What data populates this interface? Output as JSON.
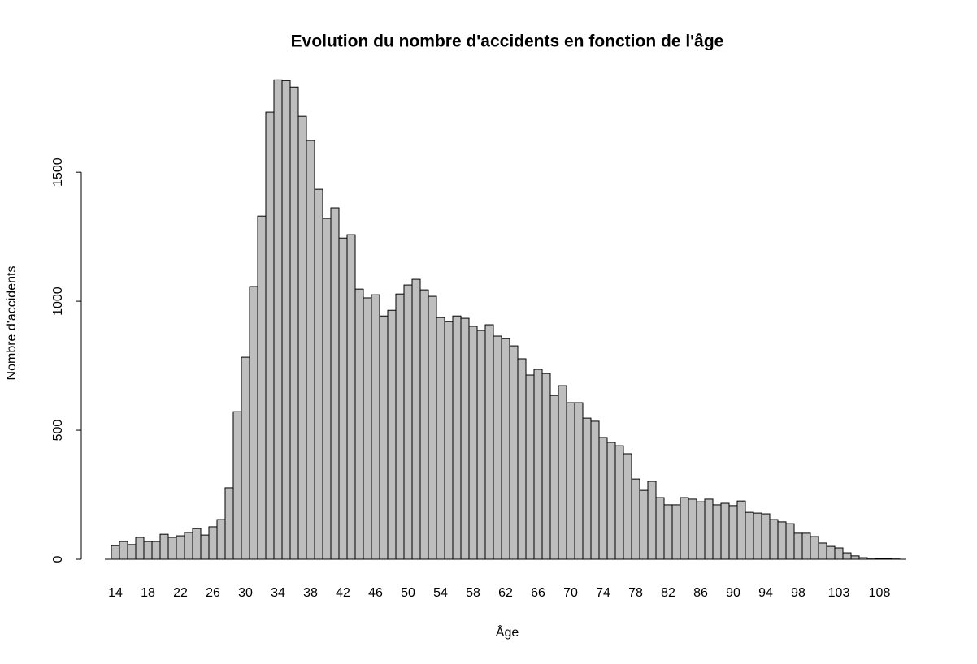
{
  "chart_data": {
    "type": "bar",
    "title": "Evolution du nombre d'accidents en fonction de l'âge",
    "x_label": "Âge",
    "y_label": "Nombre d'accidents",
    "categories": [
      14,
      null,
      null,
      null,
      18,
      null,
      null,
      null,
      22,
      null,
      null,
      null,
      26,
      null,
      null,
      null,
      30,
      null,
      null,
      null,
      34,
      null,
      null,
      null,
      38,
      null,
      null,
      null,
      42,
      null,
      null,
      null,
      46,
      null,
      null,
      null,
      50,
      null,
      null,
      null,
      54,
      null,
      null,
      null,
      58,
      null,
      null,
      null,
      62,
      null,
      null,
      null,
      66,
      null,
      null,
      null,
      70,
      null,
      null,
      null,
      74,
      null,
      null,
      null,
      78,
      null,
      null,
      null,
      82,
      null,
      null,
      null,
      86,
      null,
      null,
      null,
      90,
      null,
      null,
      null,
      94,
      null,
      null,
      null,
      98,
      null,
      null,
      null,
      null,
      103,
      null,
      null,
      null,
      null,
      108,
      null,
      null
    ],
    "values": [
      53,
      69,
      57,
      85,
      69,
      69,
      97,
      85,
      91,
      104,
      119,
      94,
      126,
      154,
      277,
      572,
      783,
      1057,
      1330,
      1733,
      1858,
      1855,
      1830,
      1717,
      1623,
      1434,
      1321,
      1362,
      1245,
      1258,
      1047,
      1013,
      1025,
      943,
      965,
      1028,
      1063,
      1085,
      1044,
      1019,
      937,
      921,
      943,
      934,
      903,
      887,
      909,
      865,
      855,
      827,
      777,
      714,
      736,
      720,
      635,
      673,
      607,
      607,
      547,
      535,
      472,
      453,
      440,
      409,
      311,
      267,
      302,
      239,
      211,
      211,
      239,
      233,
      223,
      233,
      211,
      217,
      208,
      226,
      182,
      179,
      176,
      154,
      145,
      138,
      101,
      101,
      88,
      63,
      50,
      44,
      25,
      13,
      6,
      1,
      2,
      2,
      1
    ],
    "color": "#bebebe",
    "ylim": [
      0,
      1900
    ],
    "yticks": [
      0,
      500,
      1000,
      1500
    ],
    "grid": false
  }
}
